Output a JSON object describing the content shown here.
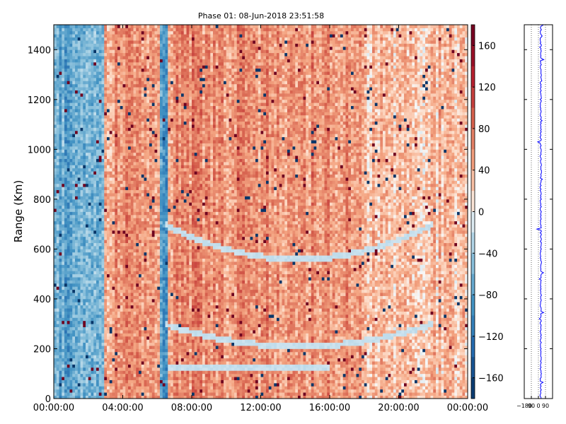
{
  "chart_data": [
    {
      "type": "heatmap",
      "title": "Phase 01: 08-Jun-2018 23:51:58",
      "xlabel": "",
      "ylabel": "Range (Km)",
      "x_tick_labels": [
        "00:00:00",
        "04:00:00",
        "08:00:00",
        "12:00:00",
        "16:00:00",
        "20:00:00",
        "00:00:00"
      ],
      "x_ticks_hours": [
        0,
        4,
        8,
        12,
        16,
        20,
        24
      ],
      "xlim_hours": [
        0,
        24
      ],
      "y_ticks": [
        0,
        200,
        400,
        600,
        800,
        1000,
        1200,
        1400
      ],
      "ylim": [
        0,
        1500
      ],
      "value_range": [
        -180,
        180
      ],
      "colormap": "RdBu_r",
      "colorbar_ticks": [
        160,
        120,
        80,
        40,
        0,
        -40,
        -80,
        -120,
        -160
      ],
      "regions": [
        {
          "hours": [
            0,
            3.0
          ],
          "mean_phase": -70
        },
        {
          "hours": [
            3.0,
            6.2
          ],
          "mean_phase": 55
        },
        {
          "hours": [
            6.2,
            6.6
          ],
          "mean_phase": -90
        },
        {
          "hours": [
            6.6,
            18
          ],
          "mean_phase": 60
        },
        {
          "hours": [
            18,
            24
          ],
          "mean_phase": 35
        }
      ],
      "curved_features_km": [
        {
          "name_hint": "lower band",
          "hours": [
            6.6,
            16
          ],
          "range_km": [
            120,
            130
          ]
        },
        {
          "name_hint": "middle arc",
          "hours": [
            6.4,
            22
          ],
          "range_km": [
            210,
            300
          ]
        },
        {
          "name_hint": "upper arc",
          "hours": [
            6.4,
            22
          ],
          "range_km": [
            560,
            700
          ]
        }
      ]
    },
    {
      "type": "line",
      "x_tick_labels": [
        "−180",
        "90",
        "0",
        "90"
      ],
      "xlim": [
        -180,
        180
      ],
      "ylim": [
        0,
        1500
      ],
      "grid": true,
      "series_color": "#0000ff"
    }
  ]
}
